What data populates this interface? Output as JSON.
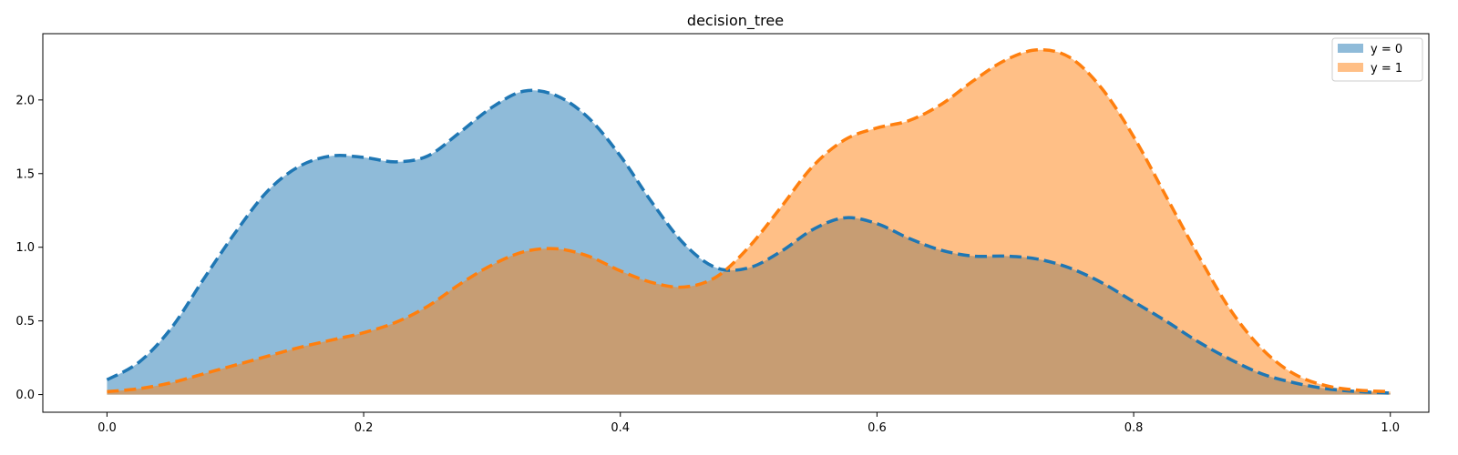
{
  "chart_data": {
    "type": "area",
    "title": "decision_tree",
    "xlabel": "",
    "ylabel": "",
    "xlim": [
      -0.05,
      1.03
    ],
    "ylim": [
      -0.12,
      2.45
    ],
    "xticks": [
      0.0,
      0.2,
      0.4,
      0.6,
      0.8,
      1.0
    ],
    "xtick_labels": [
      "0.0",
      "0.2",
      "0.4",
      "0.6",
      "0.8",
      "1.0"
    ],
    "yticks": [
      0.0,
      0.5,
      1.0,
      1.5,
      2.0
    ],
    "ytick_labels": [
      "0.0",
      "0.5",
      "1.0",
      "1.5",
      "2.0"
    ],
    "grid": false,
    "legend_position": "top-right",
    "line_style": "dashed",
    "series": [
      {
        "name": "y = 0",
        "color": "#1f77b4",
        "fill_color": "#1f77b4",
        "fill_opacity": 0.5,
        "x": [
          0.0,
          0.025,
          0.05,
          0.075,
          0.1,
          0.125,
          0.15,
          0.175,
          0.2,
          0.225,
          0.25,
          0.275,
          0.3,
          0.325,
          0.35,
          0.375,
          0.4,
          0.425,
          0.45,
          0.475,
          0.5,
          0.525,
          0.55,
          0.575,
          0.6,
          0.625,
          0.65,
          0.675,
          0.7,
          0.725,
          0.75,
          0.775,
          0.8,
          0.825,
          0.85,
          0.875,
          0.9,
          0.925,
          0.95,
          0.975,
          1.0
        ],
        "y": [
          0.1,
          0.22,
          0.45,
          0.78,
          1.1,
          1.38,
          1.55,
          1.62,
          1.61,
          1.58,
          1.62,
          1.78,
          1.95,
          2.06,
          2.03,
          1.88,
          1.62,
          1.3,
          1.02,
          0.86,
          0.86,
          0.97,
          1.12,
          1.2,
          1.16,
          1.06,
          0.98,
          0.94,
          0.94,
          0.92,
          0.86,
          0.76,
          0.63,
          0.5,
          0.36,
          0.24,
          0.14,
          0.08,
          0.04,
          0.02,
          0.01
        ]
      },
      {
        "name": "y = 1",
        "color": "#ff7f0e",
        "fill_color": "#ff7f0e",
        "fill_opacity": 0.5,
        "x": [
          0.0,
          0.025,
          0.05,
          0.075,
          0.1,
          0.125,
          0.15,
          0.175,
          0.2,
          0.225,
          0.25,
          0.275,
          0.3,
          0.325,
          0.35,
          0.375,
          0.4,
          0.425,
          0.45,
          0.475,
          0.5,
          0.525,
          0.55,
          0.575,
          0.6,
          0.625,
          0.65,
          0.675,
          0.7,
          0.725,
          0.75,
          0.775,
          0.8,
          0.825,
          0.85,
          0.875,
          0.9,
          0.925,
          0.95,
          0.975,
          1.0
        ],
        "y": [
          0.02,
          0.04,
          0.08,
          0.14,
          0.2,
          0.26,
          0.32,
          0.37,
          0.42,
          0.49,
          0.6,
          0.75,
          0.88,
          0.97,
          0.99,
          0.94,
          0.84,
          0.76,
          0.73,
          0.8,
          1.0,
          1.27,
          1.55,
          1.73,
          1.81,
          1.86,
          1.97,
          2.13,
          2.27,
          2.34,
          2.29,
          2.08,
          1.75,
          1.35,
          0.95,
          0.58,
          0.31,
          0.14,
          0.06,
          0.03,
          0.02
        ]
      }
    ]
  }
}
